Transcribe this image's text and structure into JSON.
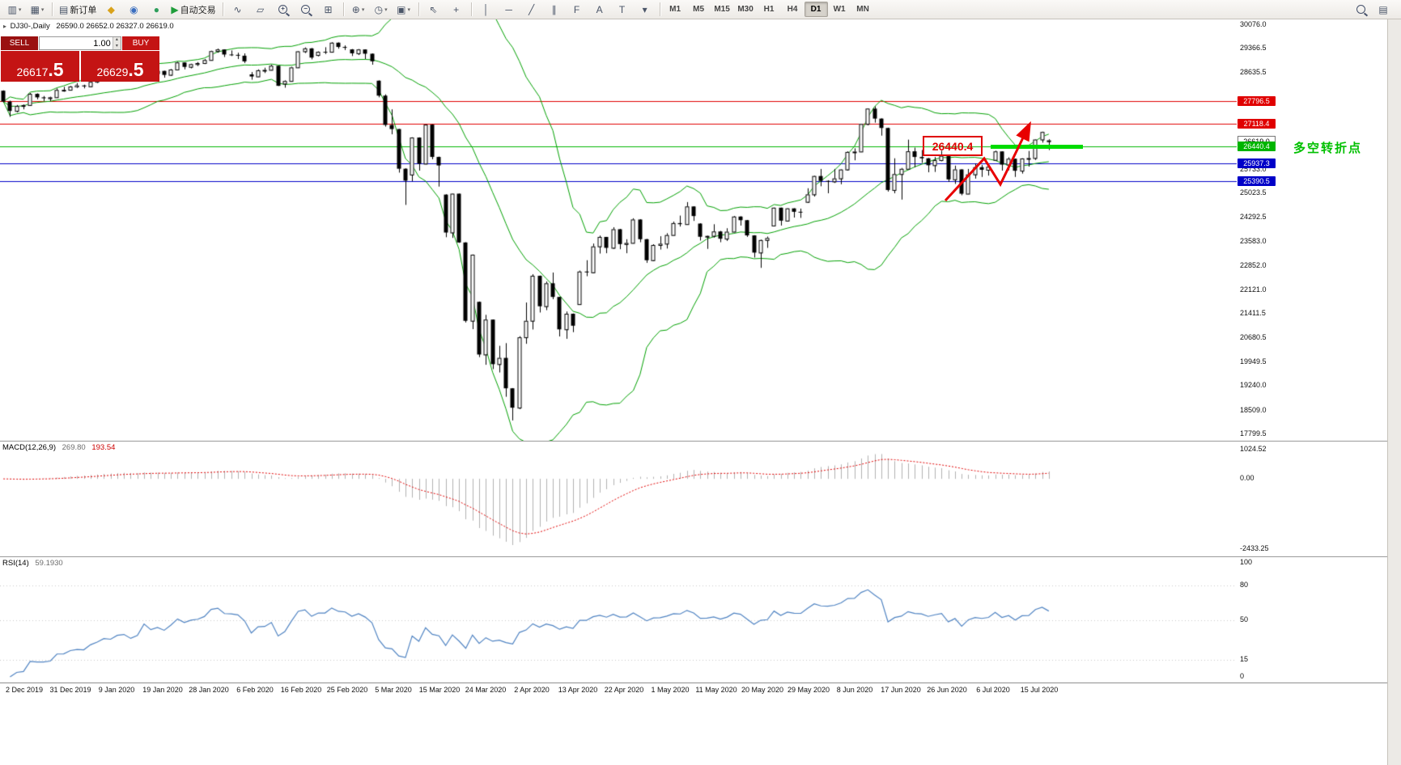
{
  "toolbar": {
    "items": [
      {
        "name": "new-chart",
        "glyph": "▥",
        "dropdown": true
      },
      {
        "name": "profiles",
        "glyph": "▦",
        "dropdown": true
      },
      {
        "type": "sep"
      },
      {
        "name": "new-order",
        "glyph": "▤",
        "label": "新订单"
      },
      {
        "name": "finance",
        "glyph": "◆",
        "color": "#d9a21a"
      },
      {
        "name": "community",
        "glyph": "◉",
        "color": "#3a6ebf"
      },
      {
        "name": "news",
        "glyph": "●",
        "color": "#2e9e5b"
      },
      {
        "name": "autotrading",
        "glyph": "▶",
        "color": "#1f9d3a",
        "label": "自动交易"
      },
      {
        "type": "sep"
      },
      {
        "name": "indicators",
        "glyph": "∿"
      },
      {
        "name": "objects-list",
        "glyph": "▱"
      },
      {
        "name": "zoom-in",
        "mag": true,
        "sign": "+"
      },
      {
        "name": "zoom-out",
        "mag": true,
        "sign": "−"
      },
      {
        "name": "tile-windows",
        "glyph": "⊞"
      },
      {
        "type": "sep"
      },
      {
        "name": "new-object",
        "glyph": "⊕",
        "dropdown": true
      },
      {
        "name": "period-clock",
        "glyph": "◷",
        "dropdown": true
      },
      {
        "name": "chart-template",
        "glyph": "▣",
        "dropdown": true
      },
      {
        "type": "sep"
      },
      {
        "name": "cursor",
        "glyph": "⇖"
      },
      {
        "name": "crosshair",
        "glyph": "+"
      },
      {
        "type": "sep"
      },
      {
        "name": "vertical-line",
        "glyph": "│"
      },
      {
        "name": "horizontal-line",
        "glyph": "─"
      },
      {
        "name": "trendline",
        "glyph": "╱"
      },
      {
        "name": "channel",
        "glyph": "∥"
      },
      {
        "name": "fibonacci",
        "glyph": "F"
      },
      {
        "name": "text",
        "glyph": "A"
      },
      {
        "name": "text-label",
        "glyph": "T"
      },
      {
        "name": "shapes",
        "glyph": "▾"
      },
      {
        "type": "sep"
      }
    ],
    "timeframes": [
      "M1",
      "M5",
      "M15",
      "M30",
      "H1",
      "H4",
      "D1",
      "W1",
      "MN"
    ],
    "active_timeframe": "D1",
    "items_right": [
      {
        "name": "search",
        "mag": true
      },
      {
        "name": "data-window",
        "glyph": "▤"
      }
    ]
  },
  "chart": {
    "symbol_info": {
      "symbol": "DJ30-,Daily",
      "ohlc": "26590.0 26652.0 26327.0 26619.0"
    },
    "trade_panel": {
      "sell_label": "SELL",
      "buy_label": "BUY",
      "volume": "1.00",
      "sell_price_main": "26617",
      "sell_price_frac": ".5",
      "buy_price_main": "26629",
      "buy_price_frac": ".5"
    },
    "annotations": {
      "price_label": "26440.4",
      "turning_point_label": "多空转折点"
    }
  },
  "chart_data": {
    "type": "candlestick",
    "symbol": "DJ30-",
    "timeframe": "Daily",
    "price_range": [
      17600,
      30250
    ],
    "current_price": 26619.0,
    "current_price_label": "26619.0",
    "price_ticks": [
      {
        "v": 30076.0,
        "label": "30076.0"
      },
      {
        "v": 29366.5,
        "label": "29366.5"
      },
      {
        "v": 28635.5,
        "label": "28635.5"
      },
      {
        "v": 25733.0,
        "label": "25733.0"
      },
      {
        "v": 25023.5,
        "label": "25023.5"
      },
      {
        "v": 24292.5,
        "label": "24292.5"
      },
      {
        "v": 23583.0,
        "label": "23583.0"
      },
      {
        "v": 22852.0,
        "label": "22852.0"
      },
      {
        "v": 22121.0,
        "label": "22121.0"
      },
      {
        "v": 21411.5,
        "label": "21411.5"
      },
      {
        "v": 20680.5,
        "label": "20680.5"
      },
      {
        "v": 19949.5,
        "label": "19949.5"
      },
      {
        "v": 19240.0,
        "label": "19240.0"
      },
      {
        "v": 18509.0,
        "label": "18509.0"
      },
      {
        "v": 17799.5,
        "label": "17799.5"
      }
    ],
    "h_lines": [
      {
        "price": 27796.5,
        "color": "#e00000",
        "label": "27796.5"
      },
      {
        "price": 27118.4,
        "color": "#e00000",
        "label": "27118.4"
      },
      {
        "price": 26440.4,
        "color": "#00b400",
        "label": "26440.4"
      },
      {
        "price": 25937.3,
        "color": "#0000c8",
        "label": "25937.3"
      },
      {
        "price": 25390.5,
        "color": "#0000c8",
        "label": "25390.5"
      }
    ],
    "x_labels": [
      "2 Dec 2019",
      "31 Dec 2019",
      "9 Jan 2020",
      "19 Jan 2020",
      "28 Jan 2020",
      "6 Feb 2020",
      "16 Feb 2020",
      "25 Feb 2020",
      "5 Mar 2020",
      "15 Mar 2020",
      "24 Mar 2020",
      "2 Apr 2020",
      "13 Apr 2020",
      "22 Apr 2020",
      "1 May 2020",
      "11 May 2020",
      "20 May 2020",
      "29 May 2020",
      "8 Jun 2020",
      "17 Jun 2020",
      "26 Jun 2020",
      "6 Jul 2020",
      "15 Jul 2020"
    ],
    "indicators": {
      "bollinger": {
        "period": 20,
        "deviation": 2,
        "color": "#00a000"
      },
      "macd": {
        "fast": 12,
        "slow": 26,
        "signal": 9
      },
      "rsi": {
        "period": 14
      }
    },
    "ohlc": [
      [
        28110,
        28120,
        27760,
        27783
      ],
      [
        27783,
        27810,
        27325,
        27502
      ],
      [
        27502,
        27680,
        27460,
        27650
      ],
      [
        27650,
        27700,
        27550,
        27678
      ],
      [
        27678,
        28040,
        27670,
        28015
      ],
      [
        28015,
        28030,
        27850,
        27910
      ],
      [
        27910,
        27950,
        27800,
        27882
      ],
      [
        27882,
        27930,
        27800,
        27911
      ],
      [
        27911,
        28180,
        27900,
        28132
      ],
      [
        28132,
        28225,
        28080,
        28135
      ],
      [
        28135,
        28250,
        28120,
        28236
      ],
      [
        28236,
        28340,
        28190,
        28267
      ],
      [
        28267,
        28290,
        28180,
        28239
      ],
      [
        28239,
        28400,
        28220,
        28377
      ],
      [
        28377,
        28470,
        28340,
        28455
      ],
      [
        28455,
        28580,
        28440,
        28551
      ],
      [
        28551,
        28570,
        28480,
        28516
      ],
      [
        28516,
        28650,
        28500,
        28621
      ],
      [
        28621,
        28680,
        28590,
        28645
      ],
      [
        28645,
        28660,
        28420,
        28462
      ],
      [
        28462,
        28550,
        28410,
        28538
      ],
      [
        28638,
        28890,
        28630,
        28869
      ],
      [
        28869,
        28870,
        28565,
        28635
      ],
      [
        28635,
        28720,
        28520,
        28704
      ],
      [
        28704,
        28710,
        28500,
        28584
      ],
      [
        28584,
        28760,
        28560,
        28745
      ],
      [
        28745,
        28980,
        28730,
        28957
      ],
      [
        28957,
        28960,
        28750,
        28824
      ],
      [
        28824,
        28920,
        28780,
        28907
      ],
      [
        28907,
        28970,
        28850,
        28939
      ],
      [
        28939,
        29060,
        28910,
        29030
      ],
      [
        29030,
        29310,
        29020,
        29298
      ],
      [
        29298,
        29374,
        29250,
        29348
      ],
      [
        29348,
        29350,
        29120,
        29196
      ],
      [
        29196,
        29320,
        29150,
        29186
      ],
      [
        29186,
        29250,
        29060,
        29160
      ],
      [
        29160,
        29230,
        28940,
        28990
      ],
      [
        28600,
        28670,
        28440,
        28536
      ],
      [
        28536,
        28750,
        28530,
        28723
      ],
      [
        28723,
        28800,
        28640,
        28734
      ],
      [
        28734,
        28890,
        28720,
        28859
      ],
      [
        28859,
        28860,
        28250,
        28256
      ],
      [
        28320,
        28420,
        28200,
        28400
      ],
      [
        28400,
        28830,
        28390,
        28808
      ],
      [
        28808,
        29300,
        28800,
        29291
      ],
      [
        29291,
        29409,
        29240,
        29380
      ],
      [
        29380,
        29390,
        29050,
        29103
      ],
      [
        29180,
        29290,
        29140,
        29277
      ],
      [
        29277,
        29415,
        29210,
        29276
      ],
      [
        29276,
        29568,
        29260,
        29551
      ],
      [
        29551,
        29560,
        29370,
        29423
      ],
      [
        29423,
        29470,
        29330,
        29398
      ],
      [
        29350,
        29360,
        29150,
        29232
      ],
      [
        29232,
        29360,
        29180,
        29348
      ],
      [
        29348,
        29350,
        29060,
        29220
      ],
      [
        29220,
        29230,
        28890,
        28992
      ],
      [
        28410,
        28420,
        27910,
        27961
      ],
      [
        27961,
        28000,
        27030,
        27081
      ],
      [
        27081,
        27550,
        26800,
        26958
      ],
      [
        26958,
        26960,
        25650,
        25767
      ],
      [
        25767,
        25780,
        24680,
        25409
      ],
      [
        25590,
        26710,
        25390,
        26703
      ],
      [
        26703,
        26710,
        25710,
        25917
      ],
      [
        25917,
        27100,
        25900,
        27091
      ],
      [
        27091,
        27100,
        26050,
        26121
      ],
      [
        26121,
        26130,
        25230,
        25865
      ],
      [
        24990,
        25000,
        23710,
        23851
      ],
      [
        23851,
        25020,
        23690,
        25018
      ],
      [
        25018,
        25020,
        23540,
        23553
      ],
      [
        23553,
        23560,
        21150,
        21200
      ],
      [
        21200,
        23190,
        20950,
        23186
      ],
      [
        21770,
        21780,
        20110,
        20188
      ],
      [
        20188,
        21380,
        19880,
        21237
      ],
      [
        21237,
        21240,
        19750,
        19899
      ],
      [
        19899,
        20450,
        19650,
        20087
      ],
      [
        20087,
        20530,
        18920,
        19174
      ],
      [
        19174,
        19180,
        18210,
        18592
      ],
      [
        18592,
        20740,
        18550,
        20705
      ],
      [
        20705,
        21750,
        20510,
        21200
      ],
      [
        21200,
        22600,
        20940,
        22552
      ],
      [
        22552,
        22560,
        21450,
        21637
      ],
      [
        21637,
        22380,
        21520,
        22327
      ],
      [
        22327,
        22650,
        21850,
        21917
      ],
      [
        21917,
        21920,
        20730,
        20944
      ],
      [
        20944,
        21480,
        20660,
        21413
      ],
      [
        21413,
        21420,
        20860,
        21053
      ],
      [
        21700,
        22710,
        21690,
        22680
      ],
      [
        22680,
        23020,
        22540,
        22654
      ],
      [
        22654,
        23520,
        22630,
        23434
      ],
      [
        23434,
        23760,
        23220,
        23719
      ],
      [
        23719,
        23720,
        23230,
        23391
      ],
      [
        23391,
        24010,
        23360,
        23950
      ],
      [
        23950,
        23960,
        23350,
        23504
      ],
      [
        23504,
        23650,
        23230,
        23538
      ],
      [
        23538,
        24280,
        23530,
        24242
      ],
      [
        24242,
        24250,
        23560,
        23651
      ],
      [
        23651,
        23660,
        22940,
        23019
      ],
      [
        23019,
        23500,
        22990,
        23476
      ],
      [
        23476,
        23740,
        23340,
        23515
      ],
      [
        23515,
        23830,
        23370,
        23775
      ],
      [
        23775,
        24180,
        23770,
        24134
      ],
      [
        24134,
        24360,
        24030,
        24102
      ],
      [
        24102,
        24765,
        24100,
        24634
      ],
      [
        24634,
        24640,
        24200,
        24346
      ],
      [
        24120,
        24130,
        23610,
        23724
      ],
      [
        23724,
        23760,
        23360,
        23750
      ],
      [
        23750,
        24100,
        23700,
        23883
      ],
      [
        23883,
        23900,
        23560,
        23665
      ],
      [
        23665,
        23980,
        23600,
        23876
      ],
      [
        23876,
        24350,
        23870,
        24331
      ],
      [
        24331,
        24340,
        24060,
        24222
      ],
      [
        24222,
        24230,
        23720,
        23765
      ],
      [
        23765,
        23770,
        23100,
        23248
      ],
      [
        23248,
        23640,
        22790,
        23625
      ],
      [
        23625,
        23730,
        23390,
        23685
      ],
      [
        24060,
        24600,
        24050,
        24597
      ],
      [
        24597,
        24600,
        24060,
        24207
      ],
      [
        24207,
        24580,
        24180,
        24576
      ],
      [
        24576,
        24580,
        24300,
        24474
      ],
      [
        24474,
        24570,
        24290,
        24465
      ],
      [
        24770,
        25180,
        24740,
        24995
      ],
      [
        24995,
        25560,
        24930,
        25548
      ],
      [
        25548,
        25760,
        25240,
        25401
      ],
      [
        25401,
        25420,
        25030,
        25383
      ],
      [
        25383,
        25760,
        25340,
        25475
      ],
      [
        25475,
        25750,
        25300,
        25743
      ],
      [
        25743,
        26290,
        25710,
        26270
      ],
      [
        26270,
        26380,
        26020,
        26282
      ],
      [
        26282,
        27110,
        26280,
        27111
      ],
      [
        27111,
        27580,
        27070,
        27572
      ],
      [
        27572,
        27640,
        27150,
        27272
      ],
      [
        27272,
        27280,
        26760,
        26990
      ],
      [
        26990,
        27000,
        25080,
        25128
      ],
      [
        25128,
        26080,
        25030,
        25605
      ],
      [
        25605,
        25790,
        24840,
        25763
      ],
      [
        25763,
        26640,
        25760,
        26290
      ],
      [
        26290,
        26400,
        25810,
        26120
      ],
      [
        26120,
        26330,
        25940,
        26080
      ],
      [
        26080,
        26090,
        25660,
        25871
      ],
      [
        25871,
        26120,
        25670,
        26025
      ],
      [
        26025,
        26310,
        25990,
        26156
      ],
      [
        26156,
        26160,
        25370,
        25446
      ],
      [
        25446,
        25860,
        25310,
        25746
      ],
      [
        25746,
        25750,
        24970,
        25016
      ],
      [
        25016,
        25760,
        25010,
        25596
      ],
      [
        25596,
        25920,
        25470,
        25813
      ],
      [
        25813,
        25880,
        25520,
        25735
      ],
      [
        25735,
        25840,
        25560,
        25827
      ],
      [
        26030,
        26310,
        26020,
        26287
      ],
      [
        26287,
        26290,
        25710,
        25890
      ],
      [
        25890,
        26110,
        25720,
        26067
      ],
      [
        26067,
        26070,
        25520,
        25706
      ],
      [
        25706,
        26080,
        25620,
        26075
      ],
      [
        26075,
        26300,
        25830,
        26086
      ],
      [
        26086,
        26650,
        26030,
        26643
      ],
      [
        26643,
        26880,
        26550,
        26870
      ],
      [
        26590,
        26652,
        26327,
        26619
      ]
    ]
  },
  "macd_pane": {
    "title": "MACD(12,26,9)",
    "main_value": "269.80",
    "signal_value": "193.54",
    "ticks": [
      {
        "v": 1024.52,
        "label": "1024.52"
      },
      {
        "v": 0,
        "label": "0.00"
      },
      {
        "v": -2433.25,
        "label": "-2433.25"
      }
    ],
    "range": [
      -2700,
      1300
    ],
    "histogram_color": "#b0b0b0",
    "signal_color": "#e00000"
  },
  "rsi_pane": {
    "title": "RSI(14)",
    "value": "59.1930",
    "color": "#4f83c2",
    "ticks": [
      {
        "v": 100,
        "label": "100"
      },
      {
        "v": 80,
        "label": "80"
      },
      {
        "v": 50,
        "label": "50"
      },
      {
        "v": 15,
        "label": "15"
      },
      {
        "v": 0,
        "label": "0"
      }
    ],
    "levels": [
      80,
      50,
      15
    ],
    "range": [
      -5,
      105
    ]
  }
}
